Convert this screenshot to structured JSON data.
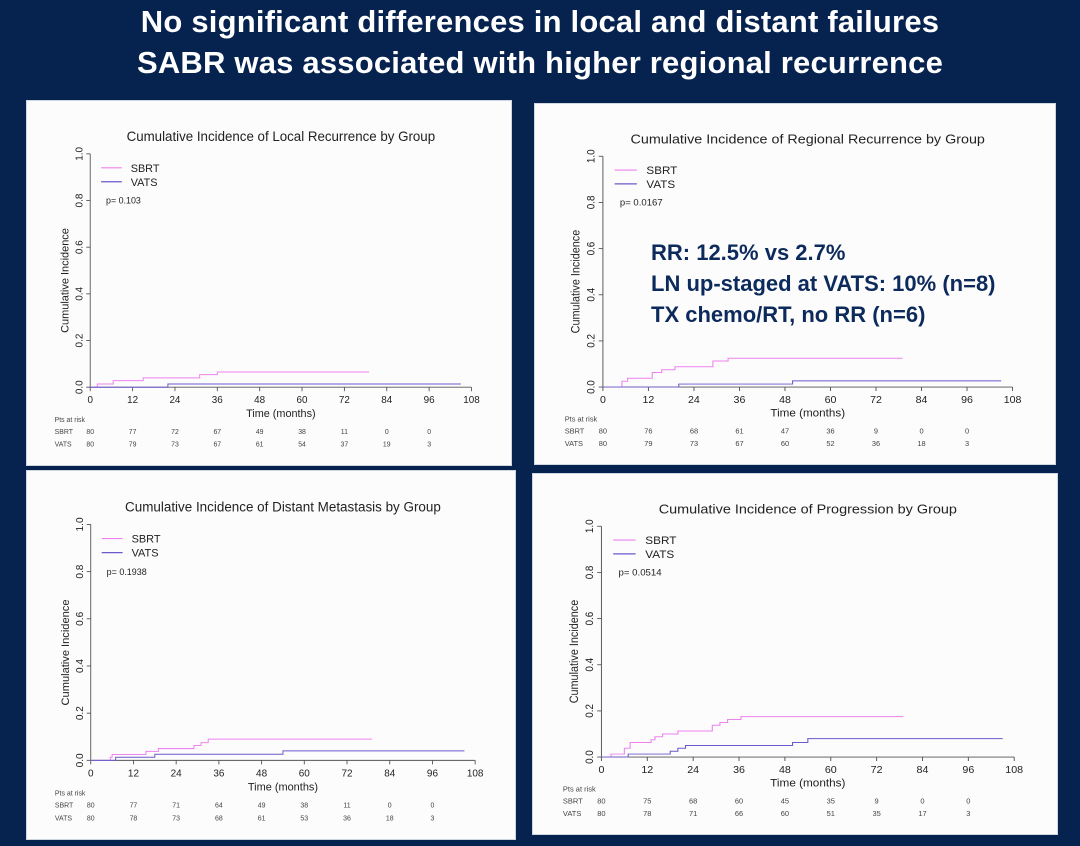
{
  "slide": {
    "title_line1": "No significant differences in local and distant failures",
    "title_line2": "SABR was associated with higher regional recurrence",
    "annotation": [
      "RR: 12.5% vs 2.7%",
      "LN up-staged  at VATS: 10% (n=8)",
      "TX chemo/RT, no RR (n=6)"
    ]
  },
  "colors": {
    "background": "#06224f",
    "SBRT": "#ee82ee",
    "VATS": "#6a5acd",
    "annotation": "#0d2a5c"
  },
  "chart_data": [
    {
      "type": "line",
      "step": true,
      "title": "Cumulative Incidence of Local Recurrence by Group",
      "xlabel": "Time (months)",
      "ylabel": "Cumulative Incidence",
      "xlim": [
        0,
        108
      ],
      "ylim": [
        0,
        1.0
      ],
      "xticks": [
        "0",
        "12",
        "24",
        "36",
        "48",
        "60",
        "72",
        "84",
        "96",
        "108"
      ],
      "yticks": [
        "0.0",
        "0.2",
        "0.4",
        "0.6",
        "0.8",
        "1.0"
      ],
      "pvalue": "p= 0.103",
      "legend": "top-left",
      "series": [
        {
          "name": "SBRT",
          "points": [
            [
              0,
              0
            ],
            [
              2,
              0.014
            ],
            [
              6.5,
              0.028
            ],
            [
              15,
              0.04
            ],
            [
              31,
              0.054
            ],
            [
              36,
              0.065
            ],
            [
              79,
              0.065
            ]
          ]
        },
        {
          "name": "VATS",
          "points": [
            [
              0,
              0
            ],
            [
              22,
              0.014
            ],
            [
              105,
              0.014
            ]
          ]
        }
      ],
      "risk_table": {
        "label": "Pts at risk",
        "times": [
          0,
          12,
          24,
          36,
          48,
          60,
          72,
          84,
          96
        ],
        "rows": [
          {
            "group": "SBRT",
            "values": [
              "80",
              "77",
              "72",
              "67",
              "49",
              "38",
              "11",
              "0",
              "0"
            ]
          },
          {
            "group": "VATS",
            "values": [
              "80",
              "79",
              "73",
              "67",
              "61",
              "54",
              "37",
              "19",
              "3"
            ]
          }
        ]
      }
    },
    {
      "type": "line",
      "step": true,
      "title": "Cumulative Incidence of Regional Recurrence by Group",
      "xlabel": "Time (months)",
      "ylabel": "Cumulative Incidence",
      "xlim": [
        0,
        108
      ],
      "ylim": [
        0,
        1.0
      ],
      "xticks": [
        "0",
        "12",
        "24",
        "36",
        "48",
        "60",
        "72",
        "84",
        "96",
        "108"
      ],
      "yticks": [
        "0.0",
        "0.2",
        "0.4",
        "0.6",
        "0.8",
        "1.0"
      ],
      "pvalue": "p= 0.0167",
      "legend": "top-left",
      "series": [
        {
          "name": "SBRT",
          "points": [
            [
              0,
              0
            ],
            [
              5,
              0.025
            ],
            [
              6.5,
              0.038
            ],
            [
              13,
              0.063
            ],
            [
              15.5,
              0.075
            ],
            [
              19,
              0.088
            ],
            [
              29,
              0.113
            ],
            [
              33,
              0.125
            ],
            [
              79,
              0.125
            ]
          ]
        },
        {
          "name": "VATS",
          "points": [
            [
              0,
              0
            ],
            [
              20,
              0.013
            ],
            [
              50,
              0.027
            ],
            [
              105,
              0.027
            ]
          ]
        }
      ],
      "risk_table": {
        "label": "Pts at risk",
        "times": [
          0,
          12,
          24,
          36,
          48,
          60,
          72,
          84,
          96
        ],
        "rows": [
          {
            "group": "SBRT",
            "values": [
              "80",
              "76",
              "68",
              "61",
              "47",
              "36",
              "9",
              "0",
              "0"
            ]
          },
          {
            "group": "VATS",
            "values": [
              "80",
              "79",
              "73",
              "67",
              "60",
              "52",
              "36",
              "18",
              "3"
            ]
          }
        ]
      }
    },
    {
      "type": "line",
      "step": true,
      "title": "Cumulative Incidence of Distant Metastasis by Group",
      "xlabel": "Time (months)",
      "ylabel": "Cumulative Incidence",
      "xlim": [
        0,
        108
      ],
      "ylim": [
        0,
        1.0
      ],
      "xticks": [
        "0",
        "12",
        "24",
        "36",
        "48",
        "60",
        "72",
        "84",
        "96",
        "108"
      ],
      "yticks": [
        "0.0",
        "0.2",
        "0.4",
        "0.6",
        "0.8",
        "1.0"
      ],
      "pvalue": "p= 0.1938",
      "legend": "top-left",
      "series": [
        {
          "name": "SBRT",
          "points": [
            [
              0,
              0
            ],
            [
              5.5,
              0.013
            ],
            [
              6,
              0.025
            ],
            [
              15.5,
              0.038
            ],
            [
              19,
              0.05
            ],
            [
              29,
              0.063
            ],
            [
              31,
              0.075
            ],
            [
              33,
              0.09
            ],
            [
              79,
              0.09
            ]
          ]
        },
        {
          "name": "VATS",
          "points": [
            [
              0,
              0
            ],
            [
              7,
              0.013
            ],
            [
              18,
              0.026
            ],
            [
              54,
              0.04
            ],
            [
              105,
              0.04
            ]
          ]
        }
      ],
      "risk_table": {
        "label": "Pts at risk",
        "times": [
          0,
          12,
          24,
          36,
          48,
          60,
          72,
          84,
          96
        ],
        "rows": [
          {
            "group": "SBRT",
            "values": [
              "80",
              "77",
              "71",
              "64",
              "49",
              "38",
              "11",
              "0",
              "0"
            ]
          },
          {
            "group": "VATS",
            "values": [
              "80",
              "78",
              "73",
              "68",
              "61",
              "53",
              "36",
              "18",
              "3"
            ]
          }
        ]
      }
    },
    {
      "type": "line",
      "step": true,
      "title": "Cumulative Incidence of Progression by Group",
      "xlabel": "Time (months)",
      "ylabel": "Cumulative Incidence",
      "xlim": [
        0,
        108
      ],
      "ylim": [
        0,
        1.0
      ],
      "xticks": [
        "0",
        "12",
        "24",
        "36",
        "48",
        "60",
        "72",
        "84",
        "96",
        "108"
      ],
      "yticks": [
        "0.0",
        "0.2",
        "0.4",
        "0.6",
        "0.8",
        "1.0"
      ],
      "pvalue": "p= 0.0514",
      "legend": "top-left",
      "series": [
        {
          "name": "SBRT",
          "points": [
            [
              0,
              0
            ],
            [
              2.5,
              0.013
            ],
            [
              6,
              0.038
            ],
            [
              7.5,
              0.063
            ],
            [
              13,
              0.075
            ],
            [
              14,
              0.088
            ],
            [
              16,
              0.1
            ],
            [
              20,
              0.113
            ],
            [
              29,
              0.138
            ],
            [
              31,
              0.15
            ],
            [
              33,
              0.163
            ],
            [
              36.5,
              0.175
            ],
            [
              79,
              0.175
            ]
          ]
        },
        {
          "name": "VATS",
          "points": [
            [
              0,
              0
            ],
            [
              7,
              0.013
            ],
            [
              18,
              0.025
            ],
            [
              20,
              0.038
            ],
            [
              22,
              0.05
            ],
            [
              50,
              0.063
            ],
            [
              54,
              0.08
            ],
            [
              105,
              0.08
            ]
          ]
        }
      ],
      "risk_table": {
        "label": "Pts at risk",
        "times": [
          0,
          12,
          24,
          36,
          48,
          60,
          72,
          84,
          96
        ],
        "rows": [
          {
            "group": "SBRT",
            "values": [
              "80",
              "75",
              "68",
              "60",
              "45",
              "35",
              "9",
              "0",
              "0"
            ]
          },
          {
            "group": "VATS",
            "values": [
              "80",
              "78",
              "71",
              "66",
              "60",
              "51",
              "35",
              "17",
              "3"
            ]
          }
        ]
      }
    }
  ]
}
